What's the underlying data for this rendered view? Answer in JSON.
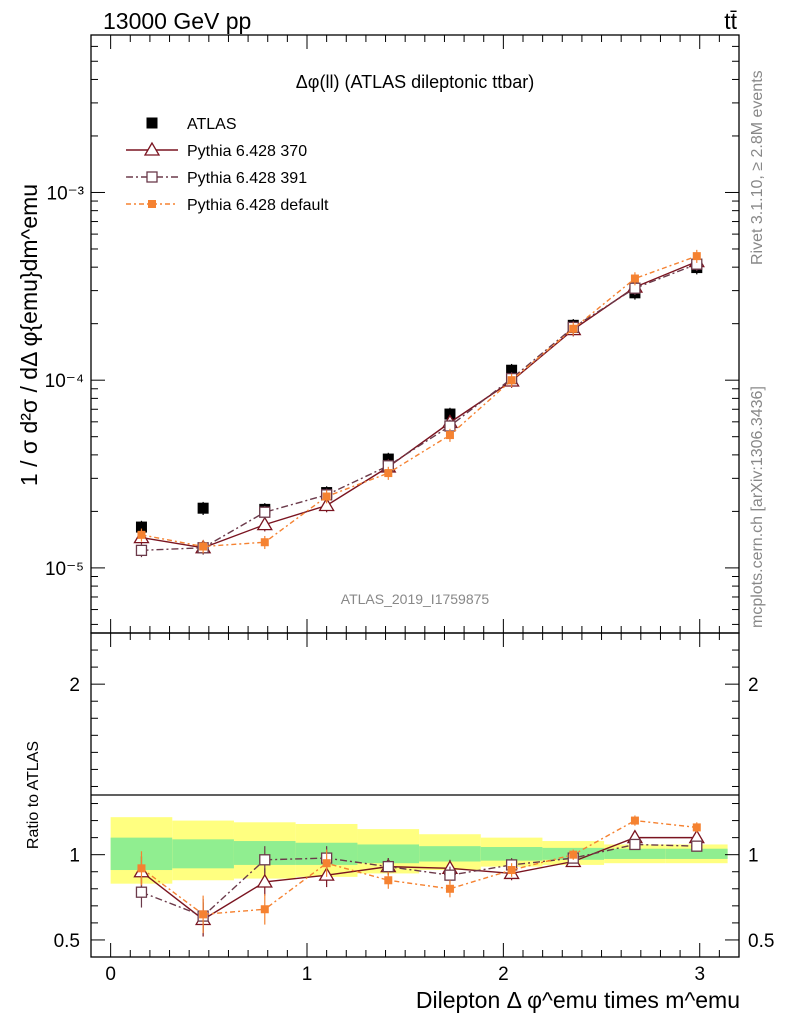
{
  "header": {
    "energy_label": "13000 GeV pp",
    "process_label": "tt̄",
    "rivet_label": "Rivet 3.1.10, ≥ 2.8M events",
    "site_label": "mcplots.cern.ch [arXiv:1306.3436]",
    "analysis_label": "ATLAS_2019_I1759875"
  },
  "chart_data": [
    {
      "type": "scatter",
      "title": "Δφ(ll) (ATLAS dileptonic ttbar)",
      "ylabel": "1 / σ  d²σ / dΔ φ{emu}dm^emu",
      "xlabel": "Dilepton Δ φ^emu times m^emu",
      "log_y": true,
      "xlim": [
        -0.1,
        3.2
      ],
      "ylim": [
        4.5e-06,
        0.0069
      ],
      "y_tick_labels": [
        "10⁻⁵",
        "10⁻⁴",
        "10⁻³"
      ],
      "x": [
        0.157,
        0.471,
        0.785,
        1.1,
        1.414,
        1.728,
        2.042,
        2.356,
        2.67,
        2.985
      ],
      "bin_edges": [
        0,
        0.314,
        0.628,
        0.942,
        1.257,
        1.571,
        1.885,
        2.199,
        2.513,
        2.827,
        3.142
      ],
      "legend_position": "top-left",
      "series": [
        {
          "name": "ATLAS",
          "color": "#000000",
          "marker": "filled-square",
          "line": "none",
          "values": [
            1.65e-05,
            2.08e-05,
            2.05e-05,
            2.52e-05,
            3.8e-05,
            6.6e-05,
            0.000113,
            0.000196,
            0.000292,
            0.000398
          ]
        },
        {
          "name": "Pythia 6.428 370",
          "color": "#7a1420",
          "marker": "open-triangle",
          "line": "solid",
          "values": [
            1.45e-05,
            1.28e-05,
            1.7e-05,
            2.15e-05,
            3.45e-05,
            5.95e-05,
            9.9e-05,
            0.000186,
            0.000313,
            0.000428
          ]
        },
        {
          "name": "Pythia 6.428 391",
          "color": "#6b3a4a",
          "marker": "open-square",
          "line": "dashdot",
          "values": [
            1.24e-05,
            1.28e-05,
            1.98e-05,
            2.45e-05,
            3.5e-05,
            5.7e-05,
            0.000102,
            0.000191,
            0.000309,
            0.000415
          ]
        },
        {
          "name": "Pythia 6.428 default",
          "color": "#f58231",
          "marker": "filled-square-small",
          "line": "dashdot-dense",
          "values": [
            1.5e-05,
            1.3e-05,
            1.37e-05,
            2.4e-05,
            3.2e-05,
            5.1e-05,
            0.0001,
            0.000188,
            0.000348,
            0.000458
          ]
        }
      ]
    },
    {
      "type": "line",
      "ylabel": "Ratio to ATLAS",
      "xlabel": "Dilepton Δ φ^emu times m^emu",
      "xlim": [
        -0.1,
        3.2
      ],
      "ylim": [
        0.4,
        2.3
      ],
      "x_tick_labels": [
        "0",
        "1",
        "2",
        "3"
      ],
      "y_tick_labels": [
        "0.5",
        "1",
        "2"
      ],
      "x": [
        0.157,
        0.471,
        0.785,
        1.1,
        1.414,
        1.728,
        2.042,
        2.356,
        2.67,
        2.985
      ],
      "bin_edges": [
        0,
        0.314,
        0.628,
        0.942,
        1.257,
        1.571,
        1.885,
        2.199,
        2.513,
        2.827,
        3.142
      ],
      "band_stat": [
        [
          0.91,
          1.1
        ],
        [
          0.92,
          1.09
        ],
        [
          0.94,
          1.08
        ],
        [
          0.94,
          1.07
        ],
        [
          0.95,
          1.06
        ],
        [
          0.96,
          1.05
        ],
        [
          0.965,
          1.045
        ],
        [
          0.97,
          1.04
        ],
        [
          0.975,
          1.035
        ],
        [
          0.975,
          1.035
        ]
      ],
      "band_total": [
        [
          0.83,
          1.22
        ],
        [
          0.85,
          1.2
        ],
        [
          0.86,
          1.19
        ],
        [
          0.87,
          1.18
        ],
        [
          0.89,
          1.15
        ],
        [
          0.91,
          1.12
        ],
        [
          0.93,
          1.1
        ],
        [
          0.94,
          1.08
        ],
        [
          0.95,
          1.06
        ],
        [
          0.95,
          1.06
        ]
      ],
      "band_colors": {
        "stat": "#90ee90",
        "total": "#ffff80"
      },
      "series": [
        {
          "name": "Pythia 6.428 370",
          "color": "#7a1420",
          "values": [
            0.9,
            0.62,
            0.84,
            0.88,
            0.93,
            0.92,
            0.89,
            0.96,
            1.1,
            1.1
          ],
          "errors": [
            0.09,
            0.1,
            0.08,
            0.07,
            0.05,
            0.05,
            0.04,
            0.03,
            0.03,
            0.03
          ]
        },
        {
          "name": "Pythia 6.428 391",
          "color": "#6b3a4a",
          "values": [
            0.78,
            0.64,
            0.97,
            0.98,
            0.93,
            0.88,
            0.94,
            0.98,
            1.06,
            1.05
          ],
          "errors": [
            0.09,
            0.1,
            0.08,
            0.07,
            0.05,
            0.05,
            0.04,
            0.03,
            0.03,
            0.03
          ]
        },
        {
          "name": "Pythia 6.428 default",
          "color": "#f58231",
          "values": [
            0.92,
            0.65,
            0.68,
            0.95,
            0.85,
            0.8,
            0.91,
            1.0,
            1.2,
            1.16
          ],
          "errors": [
            0.1,
            0.11,
            0.09,
            0.08,
            0.05,
            0.05,
            0.04,
            0.03,
            0.03,
            0.03
          ]
        }
      ]
    }
  ]
}
